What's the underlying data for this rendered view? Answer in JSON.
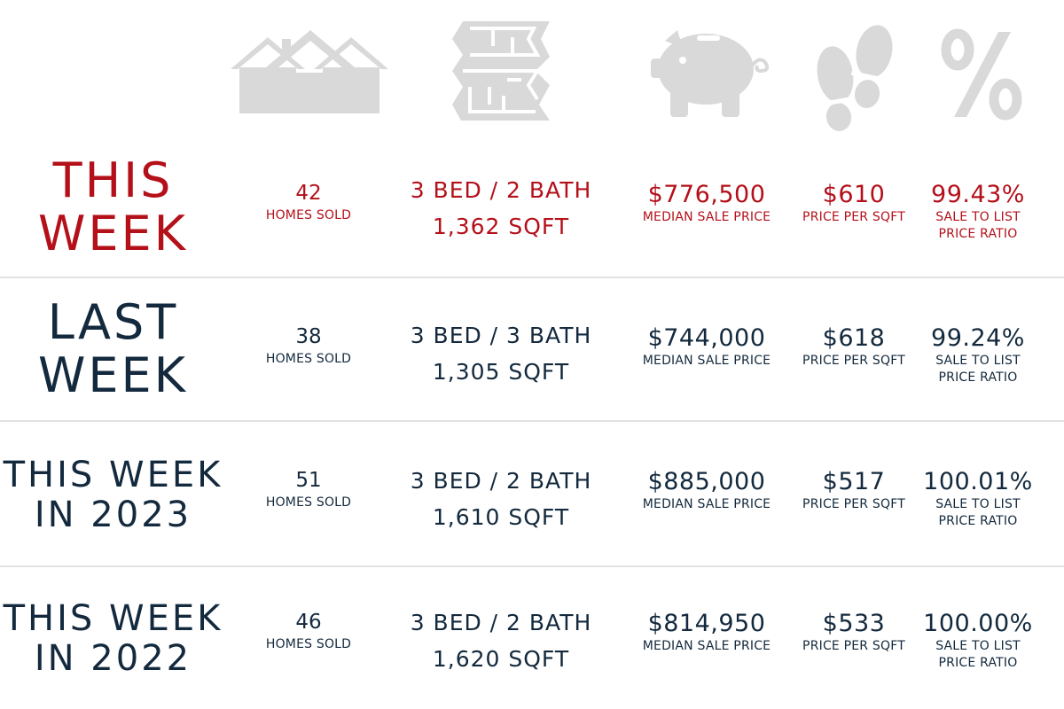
{
  "icons": {
    "color": "#d9d9d9",
    "items": [
      "house-icon",
      "floor-plan-icon",
      "piggy-bank-icon",
      "footprints-icon",
      "percent-icon"
    ],
    "percent_symbol": "%"
  },
  "colors": {
    "highlight": "#b4101a",
    "default": "#13293d"
  },
  "rows": [
    {
      "label_line1": "THIS",
      "label_line2": "WEEK",
      "homes_sold": "42",
      "homes_sold_label": "HOMES SOLD",
      "beds_baths": "3 BED / 2 BATH",
      "sqft": "1,362 SQFT",
      "median_price": "$776,500",
      "median_price_label": "MEDIAN SALE PRICE",
      "price_per_sqft": "$610",
      "price_per_sqft_label": "PRICE PER SQFT",
      "ratio": "99.43%",
      "ratio_label_line1": "SALE TO LIST",
      "ratio_label_line2": "PRICE RATIO"
    },
    {
      "label_line1": "LAST",
      "label_line2": "WEEK",
      "homes_sold": "38",
      "homes_sold_label": "HOMES SOLD",
      "beds_baths": "3 BED / 3 BATH",
      "sqft": "1,305 SQFT",
      "median_price": "$744,000",
      "median_price_label": "MEDIAN SALE PRICE",
      "price_per_sqft": "$618",
      "price_per_sqft_label": "PRICE PER SQFT",
      "ratio": "99.24%",
      "ratio_label_line1": "SALE TO LIST",
      "ratio_label_line2": "PRICE RATIO"
    },
    {
      "label_line1": "THIS WEEK",
      "label_line2": "IN 2023",
      "homes_sold": "51",
      "homes_sold_label": "HOMES SOLD",
      "beds_baths": "3 BED / 2 BATH",
      "sqft": "1,610 SQFT",
      "median_price": "$885,000",
      "median_price_label": "MEDIAN SALE PRICE",
      "price_per_sqft": "$517",
      "price_per_sqft_label": "PRICE PER SQFT",
      "ratio": "100.01%",
      "ratio_label_line1": "SALE TO LIST",
      "ratio_label_line2": "PRICE RATIO"
    },
    {
      "label_line1": "THIS WEEK",
      "label_line2": "IN 2022",
      "homes_sold": "46",
      "homes_sold_label": "HOMES SOLD",
      "beds_baths": "3 BED / 2 BATH",
      "sqft": "1,620 SQFT",
      "median_price": "$814,950",
      "median_price_label": "MEDIAN SALE PRICE",
      "price_per_sqft": "$533",
      "price_per_sqft_label": "PRICE PER SQFT",
      "ratio": "100.00%",
      "ratio_label_line1": "SALE TO LIST",
      "ratio_label_line2": "PRICE RATIO"
    }
  ]
}
